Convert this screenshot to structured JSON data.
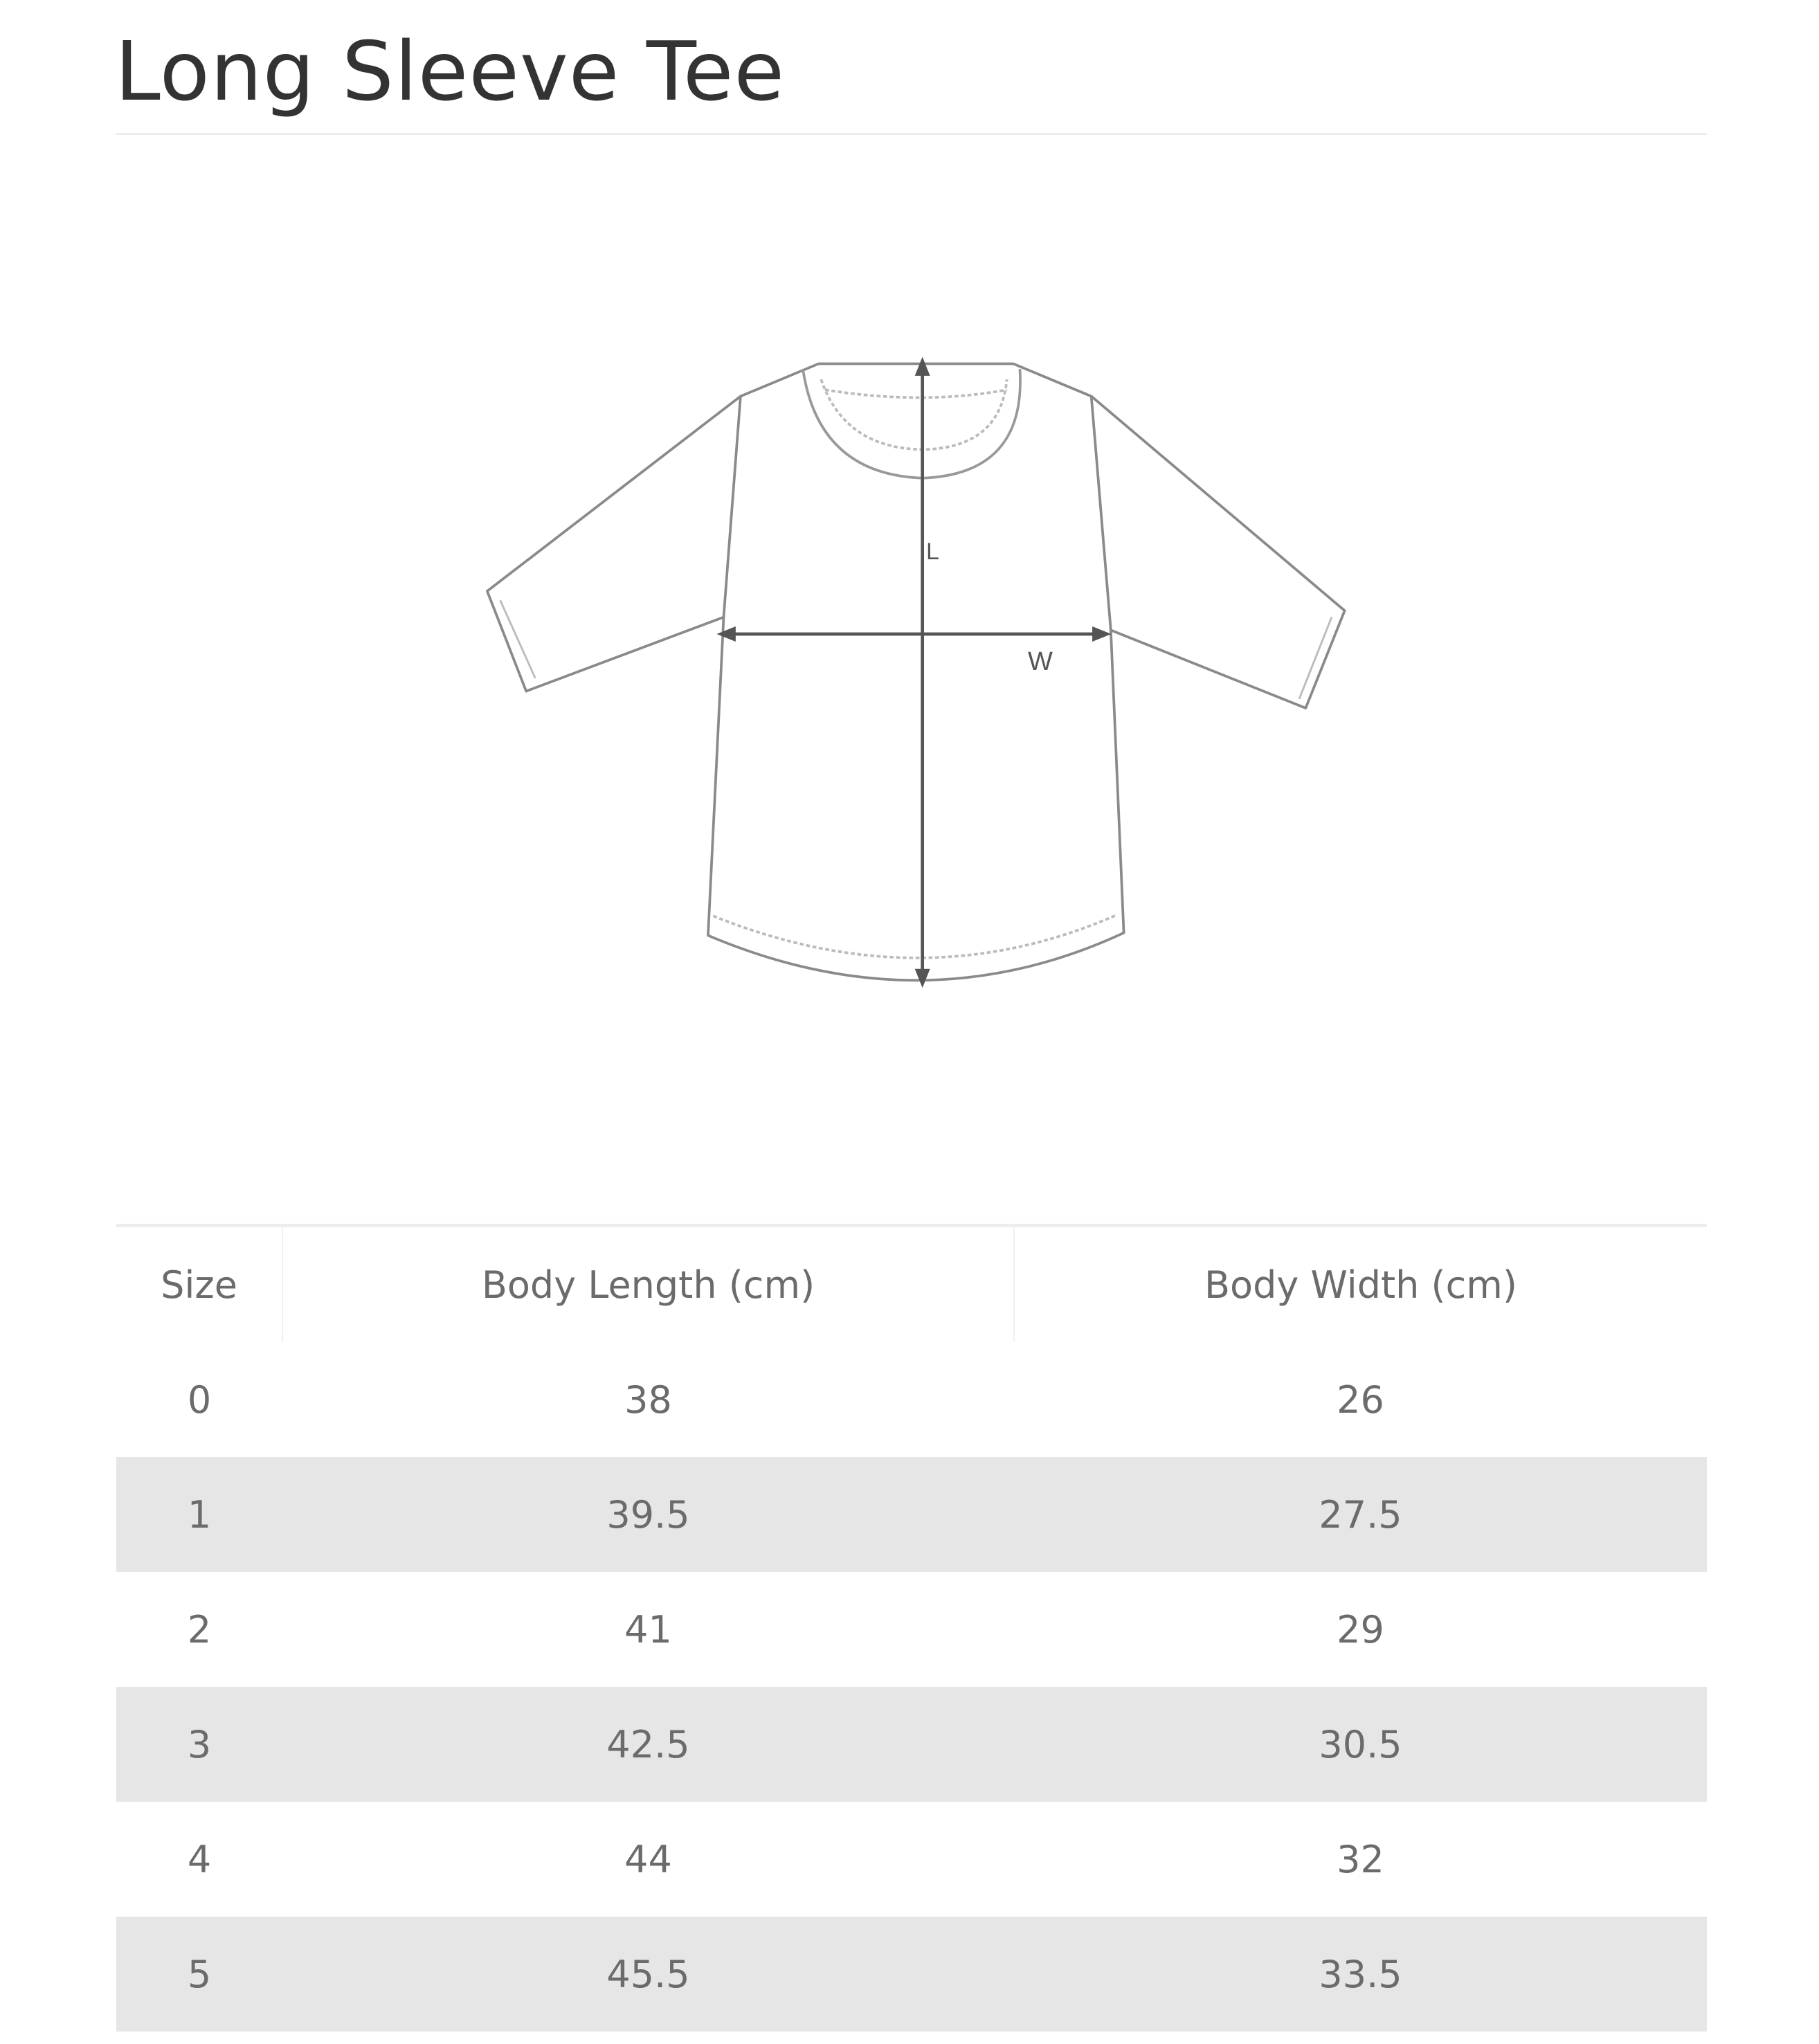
{
  "title": "Long Sleeve Tee",
  "diagram": {
    "length_label": "L",
    "width_label": "W",
    "line_color": "#8a8a8a",
    "arrow_color": "#555555"
  },
  "table": {
    "headers": [
      "Size",
      "Body Length (cm)",
      "Body Width (cm)"
    ],
    "rows": [
      [
        "0",
        "38",
        "26"
      ],
      [
        "1",
        "39.5",
        "27.5"
      ],
      [
        "2",
        "41",
        "29"
      ],
      [
        "3",
        "42.5",
        "30.5"
      ],
      [
        "4",
        "44",
        "32"
      ],
      [
        "5",
        "45.5",
        "33.5"
      ]
    ],
    "stripe_color": "#e6e6e6"
  }
}
